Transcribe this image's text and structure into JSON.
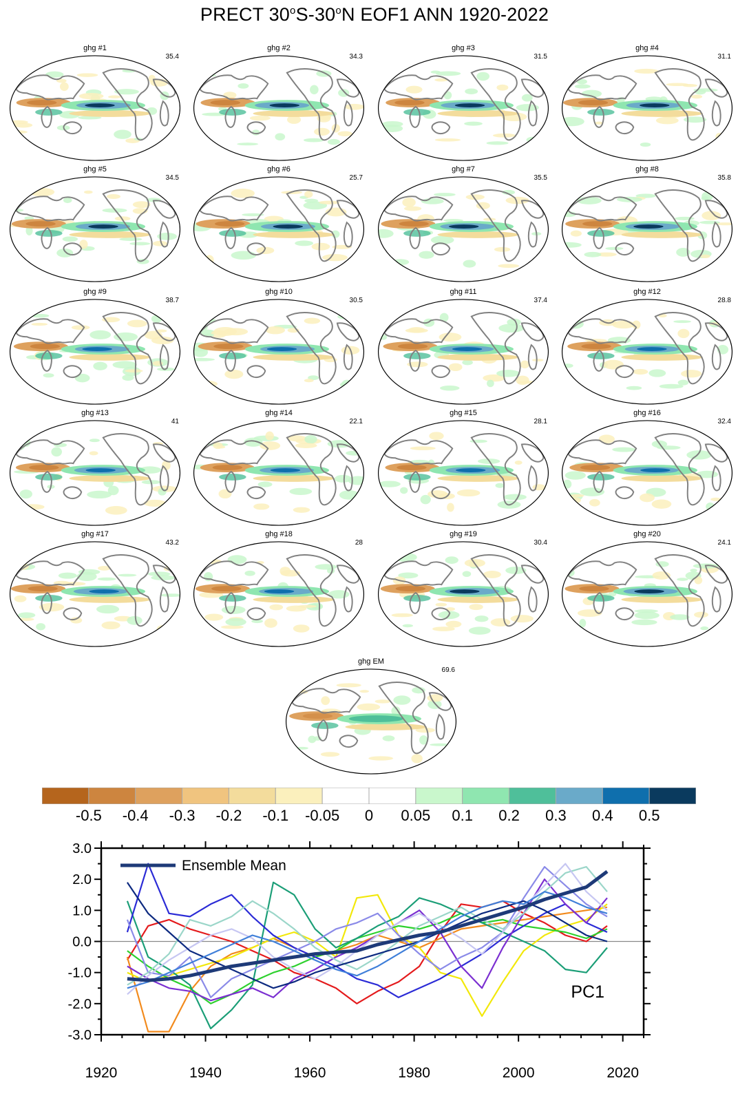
{
  "figure": {
    "title_parts": [
      "PRECT 30",
      "o",
      "S-30",
      "o",
      "N EOF1 ANN 1920-2022"
    ]
  },
  "panels": [
    {
      "title": "ghg #1",
      "pct": "35.4"
    },
    {
      "title": "ghg #2",
      "pct": "34.3"
    },
    {
      "title": "ghg #3",
      "pct": "31.5"
    },
    {
      "title": "ghg #4",
      "pct": "31.1"
    },
    {
      "title": "ghg #5",
      "pct": "34.5"
    },
    {
      "title": "ghg #6",
      "pct": "25.7"
    },
    {
      "title": "ghg #7",
      "pct": "35.5"
    },
    {
      "title": "ghg #8",
      "pct": "35.8"
    },
    {
      "title": "ghg #9",
      "pct": "38.7"
    },
    {
      "title": "ghg #10",
      "pct": "30.5"
    },
    {
      "title": "ghg #11",
      "pct": "37.4"
    },
    {
      "title": "ghg #12",
      "pct": "28.8"
    },
    {
      "title": "ghg #13",
      "pct": "41"
    },
    {
      "title": "ghg #14",
      "pct": "22.1"
    },
    {
      "title": "ghg #15",
      "pct": "28.1"
    },
    {
      "title": "ghg #16",
      "pct": "32.4"
    },
    {
      "title": "ghg #17",
      "pct": "43.2"
    },
    {
      "title": "ghg #18",
      "pct": "28"
    },
    {
      "title": "ghg #19",
      "pct": "30.4"
    },
    {
      "title": "ghg #20",
      "pct": "24.1"
    },
    {
      "title": "ghg EM",
      "pct": "69.6"
    }
  ],
  "colorbar": {
    "colors": [
      "#b5651d",
      "#cd853f",
      "#dea15e",
      "#f0c47f",
      "#f3dc9c",
      "#fbf0bd",
      "#ffffff",
      "#ffffff",
      "#c9f7cc",
      "#8fe6b0",
      "#4fbf9a",
      "#6aaac9",
      "#0f6fad",
      "#0a3a5e"
    ],
    "labels": [
      "-0.5",
      "-0.4",
      "-0.3",
      "-0.2",
      "-0.1",
      "-0.05",
      "0",
      "0.05",
      "0.1",
      "0.2",
      "0.3",
      "0.4",
      "0.5"
    ]
  },
  "chart_data": {
    "type": "line",
    "title": "",
    "annotation": "PC1",
    "xlabel": "",
    "ylabel": "",
    "xlim": [
      1920,
      2024
    ],
    "ylim": [
      -3.0,
      3.0
    ],
    "x_ticks": [
      1920,
      1940,
      1960,
      1980,
      2000,
      2020
    ],
    "y_ticks": [
      "3.0",
      "2.0",
      "1.0",
      "0.0",
      "-1.0",
      "-2.0",
      "-3.0"
    ],
    "legend": {
      "label": "Ensemble Mean",
      "placement": "top-left"
    },
    "x": [
      1925,
      1929,
      1933,
      1937,
      1941,
      1945,
      1949,
      1953,
      1957,
      1961,
      1965,
      1969,
      1973,
      1977,
      1981,
      1985,
      1989,
      1993,
      1997,
      2001,
      2005,
      2009,
      2013,
      2017
    ],
    "ensemble_mean": {
      "color": "#1e3a78",
      "values": [
        -1.2,
        -1.25,
        -1.2,
        -1.1,
        -0.95,
        -0.8,
        -0.7,
        -0.6,
        -0.5,
        -0.4,
        -0.35,
        -0.3,
        -0.1,
        0.05,
        0.2,
        0.3,
        0.5,
        0.7,
        0.9,
        1.1,
        1.35,
        1.55,
        1.75,
        2.25
      ]
    },
    "members": [
      {
        "color": "#e41a1c",
        "values": [
          -0.6,
          0.5,
          0.7,
          0.4,
          0.2,
          0.0,
          -0.3,
          -0.6,
          -1.0,
          -1.2,
          -1.5,
          -2.0,
          -1.6,
          -1.3,
          -0.8,
          0.3,
          1.2,
          1.1,
          1.3,
          0.9,
          0.6,
          0.2,
          0.0,
          0.5
        ]
      },
      {
        "color": "#f28a1c",
        "values": [
          -0.5,
          -2.9,
          -2.9,
          -1.6,
          -0.8,
          -0.4,
          -0.2,
          0.1,
          -0.2,
          -0.5,
          -0.3,
          -0.1,
          0.2,
          0.0,
          -0.2,
          0.1,
          0.4,
          0.5,
          0.6,
          0.7,
          0.8,
          0.9,
          1.0,
          1.1
        ]
      },
      {
        "color": "#f2e80a",
        "values": [
          -1.0,
          -1.3,
          -1.1,
          -0.9,
          -0.7,
          -0.5,
          -0.2,
          0.1,
          0.3,
          0.0,
          -0.5,
          1.4,
          1.5,
          0.2,
          -0.2,
          -1.0,
          -1.2,
          -2.4,
          -1.3,
          -0.3,
          0.2,
          0.5,
          0.7,
          1.2
        ]
      },
      {
        "color": "#2ed12e",
        "values": [
          -0.3,
          -0.8,
          -1.2,
          -1.5,
          -2.0,
          -1.7,
          -1.3,
          -1.0,
          -0.8,
          -0.5,
          -0.3,
          0.1,
          0.3,
          0.5,
          0.4,
          0.6,
          0.9,
          0.6,
          0.7,
          0.5,
          0.4,
          0.3,
          0.1,
          0.4
        ]
      },
      {
        "color": "#1b9e77",
        "values": [
          1.3,
          -0.5,
          -0.9,
          -1.4,
          -2.8,
          -2.2,
          -1.4,
          1.9,
          1.5,
          0.4,
          -0.2,
          0.1,
          0.5,
          0.8,
          1.4,
          1.2,
          0.9,
          0.6,
          0.3,
          0.0,
          -0.3,
          -0.9,
          -1.0,
          -0.2
        ]
      },
      {
        "color": "#2b2bd6",
        "values": [
          0.3,
          2.5,
          0.9,
          0.8,
          1.2,
          1.5,
          0.8,
          0.2,
          -0.2,
          -0.5,
          -0.8,
          -1.2,
          -1.4,
          -1.8,
          -1.5,
          -1.2,
          -0.8,
          -0.4,
          0.1,
          0.5,
          0.9,
          1.2,
          0.6,
          0.3
        ]
      },
      {
        "color": "#7b2fd1",
        "values": [
          -0.8,
          -1.2,
          -1.5,
          -1.6,
          -1.9,
          -1.7,
          -1.5,
          -1.8,
          -1.2,
          -0.9,
          -0.5,
          -0.2,
          0.2,
          0.6,
          1.0,
          0.3,
          -0.8,
          -1.5,
          -0.2,
          0.9,
          2.0,
          1.2,
          0.6,
          1.4
        ]
      },
      {
        "color": "#8a8ae8",
        "values": [
          0.7,
          -1.0,
          -1.1,
          -0.5,
          -1.8,
          -1.2,
          -0.9,
          -0.6,
          -0.3,
          0.0,
          0.4,
          0.6,
          0.9,
          0.2,
          -0.4,
          -0.9,
          -0.5,
          -0.2,
          0.3,
          1.4,
          2.4,
          1.8,
          1.2,
          0.8
        ]
      },
      {
        "color": "#9bd6c9",
        "values": [
          -1.4,
          -1.0,
          -0.4,
          0.7,
          0.5,
          0.8,
          1.3,
          0.9,
          0.4,
          -0.2,
          -0.6,
          -0.9,
          -0.5,
          0.0,
          0.5,
          0.8,
          1.1,
          0.7,
          0.4,
          0.9,
          1.6,
          2.2,
          2.4,
          1.6
        ]
      },
      {
        "color": "#c6c6f2",
        "values": [
          -1.7,
          -1.1,
          -0.6,
          -0.2,
          0.2,
          0.4,
          0.1,
          -0.5,
          -0.9,
          -1.2,
          -0.8,
          -0.3,
          0.2,
          0.6,
          0.9,
          0.5,
          0.1,
          -0.4,
          0.3,
          1.1,
          1.8,
          2.5,
          1.6,
          1.0
        ]
      },
      {
        "color": "#0d2a80",
        "values": [
          1.9,
          0.9,
          0.3,
          -0.3,
          -0.6,
          -0.9,
          -1.2,
          -1.5,
          -1.3,
          -1.0,
          -0.8,
          -0.6,
          -0.4,
          -0.2,
          0.0,
          0.3,
          0.6,
          0.9,
          1.1,
          1.3,
          1.0,
          0.6,
          0.2,
          0.0
        ]
      },
      {
        "color": "#3f7fd9",
        "values": [
          -1.5,
          -1.3,
          -1.0,
          -0.7,
          -0.4,
          -0.1,
          0.2,
          0.0,
          -0.3,
          -0.6,
          -0.9,
          -1.1,
          -0.8,
          -0.4,
          0.0,
          0.4,
          0.8,
          1.1,
          1.3,
          1.2,
          1.6,
          1.4,
          1.1,
          0.9
        ]
      }
    ]
  }
}
